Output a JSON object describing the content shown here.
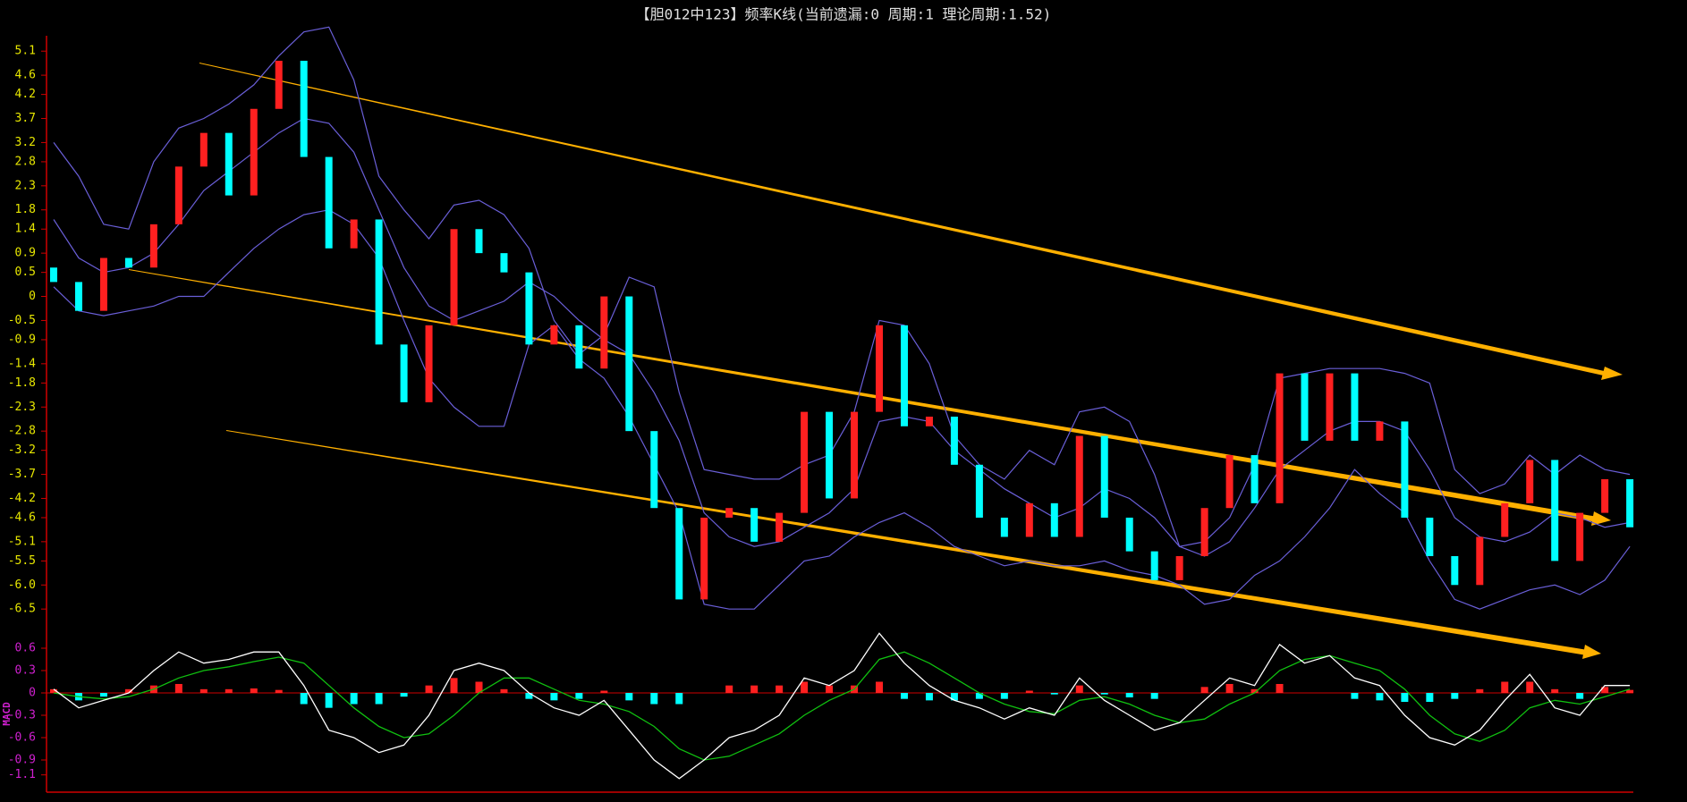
{
  "chart_data": [
    {
      "type": "candlestick",
      "title": "【胆012中123】频率K线(当前遗漏:0 周期:1 理论周期:1.52)",
      "up_color": "#ff2020",
      "down_color": "#00ffff",
      "open": [
        0.6,
        0.3,
        -0.3,
        0.8,
        0.6,
        1.5,
        2.7,
        3.4,
        2.1,
        3.9,
        4.9,
        2.9,
        1.0,
        1.6,
        -1.0,
        -2.2,
        -0.6,
        1.4,
        0.9,
        0.5,
        -1.0,
        -0.6,
        -1.5,
        0.0,
        -2.8,
        -4.4,
        -6.3,
        -4.6,
        -4.4,
        -5.1,
        -4.5,
        -2.4,
        -4.2,
        -2.4,
        -0.6,
        -2.7,
        -2.5,
        -3.5,
        -4.6,
        -5.0,
        -4.3,
        -5.0,
        -2.9,
        -4.6,
        -5.3,
        -5.9,
        -5.4,
        -4.4,
        -3.3,
        -4.3,
        -1.6,
        -3.0,
        -1.6,
        -3.0,
        -2.6,
        -4.6,
        -5.4,
        -6.0,
        -5.0,
        -4.3,
        -3.4,
        -5.5,
        -4.5,
        -3.8
      ],
      "close": [
        0.3,
        -0.3,
        0.8,
        0.6,
        1.5,
        2.7,
        3.4,
        2.1,
        3.9,
        4.9,
        2.9,
        1.0,
        1.6,
        -1.0,
        -2.2,
        -0.6,
        1.4,
        0.9,
        0.5,
        -1.0,
        -0.6,
        -1.5,
        0.0,
        -2.8,
        -4.4,
        -6.3,
        -4.6,
        -4.4,
        -5.1,
        -4.5,
        -2.4,
        -4.2,
        -2.4,
        -0.6,
        -2.7,
        -2.5,
        -3.5,
        -4.6,
        -5.0,
        -4.3,
        -5.0,
        -2.9,
        -4.6,
        -5.3,
        -5.9,
        -5.4,
        -4.4,
        -3.3,
        -4.3,
        -1.6,
        -3.0,
        -1.6,
        -3.0,
        -2.6,
        -4.6,
        -5.4,
        -6.0,
        -5.0,
        -4.3,
        -3.4,
        -5.5,
        -4.5,
        -3.8,
        -4.8
      ],
      "bands": [
        {
          "color": "#6a5fd8",
          "values": [
            3.2,
            2.5,
            1.5,
            1.4,
            2.8,
            3.5,
            3.7,
            4.0,
            4.4,
            5.0,
            5.5,
            5.6,
            4.5,
            2.5,
            1.8,
            1.2,
            1.9,
            2.0,
            1.7,
            1.0,
            -0.5,
            -1.2,
            -0.8,
            0.4,
            0.2,
            -2.0,
            -3.6,
            -3.7,
            -3.8,
            -3.8,
            -3.5,
            -3.3,
            -2.4,
            -0.5,
            -0.6,
            -1.4,
            -2.9,
            -3.5,
            -3.8,
            -3.2,
            -3.5,
            -2.4,
            -2.3,
            -2.6,
            -3.7,
            -5.2,
            -5.1,
            -4.6,
            -3.5,
            -1.7,
            -1.6,
            -1.5,
            -1.5,
            -1.5,
            -1.6,
            -1.8,
            -3.6,
            -4.1,
            -3.9,
            -3.3,
            -3.7,
            -3.3,
            -3.6,
            -3.7
          ]
        },
        {
          "color": "#6a5fd8",
          "values": [
            1.6,
            0.8,
            0.5,
            0.6,
            0.9,
            1.5,
            2.2,
            2.6,
            3.0,
            3.4,
            3.7,
            3.6,
            3.0,
            1.8,
            0.6,
            -0.2,
            -0.5,
            -0.3,
            -0.1,
            0.3,
            0.0,
            -0.5,
            -0.9,
            -1.2,
            -2.0,
            -3.0,
            -4.5,
            -5.0,
            -5.2,
            -5.1,
            -4.8,
            -4.5,
            -4.0,
            -2.6,
            -2.5,
            -2.6,
            -3.2,
            -3.6,
            -4.0,
            -4.3,
            -4.6,
            -4.4,
            -4.0,
            -4.2,
            -4.6,
            -5.2,
            -5.4,
            -5.1,
            -4.4,
            -3.6,
            -3.2,
            -2.8,
            -2.6,
            -2.6,
            -2.8,
            -3.6,
            -4.6,
            -5.0,
            -5.1,
            -4.9,
            -4.5,
            -4.6,
            -4.8,
            -4.7
          ]
        },
        {
          "color": "#6a5fd8",
          "values": [
            0.2,
            -0.3,
            -0.4,
            -0.3,
            -0.2,
            0.0,
            0.0,
            0.5,
            1.0,
            1.4,
            1.7,
            1.8,
            1.5,
            0.8,
            -0.5,
            -1.7,
            -2.3,
            -2.7,
            -2.7,
            -1.0,
            -0.6,
            -1.3,
            -1.7,
            -2.5,
            -3.5,
            -4.5,
            -6.4,
            -6.5,
            -6.5,
            -6.0,
            -5.5,
            -5.4,
            -5.0,
            -4.7,
            -4.5,
            -4.8,
            -5.2,
            -5.4,
            -5.6,
            -5.5,
            -5.6,
            -5.6,
            -5.5,
            -5.7,
            -5.8,
            -6.0,
            -6.4,
            -6.3,
            -5.8,
            -5.5,
            -5.0,
            -4.4,
            -3.6,
            -4.1,
            -4.5,
            -5.5,
            -6.3,
            -6.5,
            -6.3,
            -6.1,
            -6.0,
            -6.2,
            -5.9,
            -5.2
          ]
        }
      ],
      "ylim": [
        -6.85,
        5.42
      ],
      "yticks": [
        5.1,
        4.6,
        4.2,
        3.7,
        3.2,
        2.8,
        2.3,
        1.8,
        1.4,
        0.9,
        0.5,
        0,
        -0.5,
        -0.9,
        -1.4,
        -1.8,
        -2.3,
        -2.8,
        -3.2,
        -3.7,
        -4.2,
        -4.6,
        -5.1,
        -5.5,
        {
          "value": -6,
          "label": "-6.0"
        },
        -6.5
      ],
      "tick_color": "#e8e800"
    },
    {
      "type": "macd",
      "ylabel": "MACD",
      "dif": {
        "color": "#ffffff",
        "values": [
          0.05,
          -0.2,
          -0.1,
          0,
          0.3,
          0.55,
          0.4,
          0.45,
          0.55,
          0.55,
          0.1,
          -0.5,
          -0.6,
          -0.8,
          -0.7,
          -0.3,
          0.3,
          0.4,
          0.3,
          0,
          -0.2,
          -0.3,
          -0.1,
          -0.5,
          -0.9,
          -1.15,
          -0.9,
          -0.6,
          -0.5,
          -0.3,
          0.2,
          0.1,
          0.3,
          0.8,
          0.4,
          0.1,
          -0.1,
          -0.2,
          -0.35,
          -0.2,
          -0.3,
          0.2,
          -0.1,
          -0.3,
          -0.5,
          -0.4,
          -0.1,
          0.2,
          0.1,
          0.65,
          0.4,
          0.5,
          0.2,
          0.1,
          -0.3,
          -0.6,
          -0.7,
          -0.5,
          -0.1,
          0.25,
          -0.2,
          -0.3,
          0.1,
          0.1
        ]
      },
      "dea": {
        "color": "#10c010",
        "values": [
          0.0,
          -0.05,
          -0.08,
          -0.05,
          0.05,
          0.2,
          0.3,
          0.35,
          0.42,
          0.48,
          0.4,
          0.1,
          -0.2,
          -0.45,
          -0.6,
          -0.55,
          -0.3,
          0.0,
          0.2,
          0.2,
          0.05,
          -0.1,
          -0.15,
          -0.25,
          -0.45,
          -0.75,
          -0.9,
          -0.85,
          -0.7,
          -0.55,
          -0.3,
          -0.1,
          0.05,
          0.45,
          0.55,
          0.4,
          0.2,
          0.0,
          -0.15,
          -0.25,
          -0.28,
          -0.1,
          -0.05,
          -0.15,
          -0.3,
          -0.4,
          -0.35,
          -0.15,
          0.0,
          0.3,
          0.45,
          0.5,
          0.4,
          0.3,
          0.05,
          -0.3,
          -0.55,
          -0.65,
          -0.5,
          -0.2,
          -0.1,
          -0.15,
          -0.05,
          0.05
        ]
      },
      "hist": [
        0.05,
        -0.1,
        -0.05,
        0.05,
        0.1,
        0.12,
        0.05,
        0.05,
        0.06,
        0.04,
        -0.15,
        -0.2,
        -0.15,
        -0.15,
        -0.05,
        0.1,
        0.2,
        0.15,
        0.05,
        -0.08,
        -0.1,
        -0.08,
        0.03,
        -0.1,
        -0.15,
        -0.15,
        0.0,
        0.1,
        0.1,
        0.1,
        0.15,
        0.1,
        0.1,
        0.15,
        -0.08,
        -0.1,
        -0.1,
        -0.08,
        -0.08,
        0.03,
        -0.02,
        0.1,
        -0.02,
        -0.06,
        -0.08,
        0.0,
        0.08,
        0.12,
        0.05,
        0.12,
        0.0,
        0.0,
        -0.08,
        -0.1,
        -0.12,
        -0.12,
        -0.08,
        0.05,
        0.15,
        0.15,
        0.05,
        -0.08,
        0.08,
        0.04
      ],
      "ylim": [
        -1.32,
        0.756
      ],
      "yticks": [
        0.6,
        0.3,
        0,
        -0.3,
        -0.6,
        -0.9,
        -1.1
      ],
      "tick_color": "#d020d0"
    }
  ]
}
